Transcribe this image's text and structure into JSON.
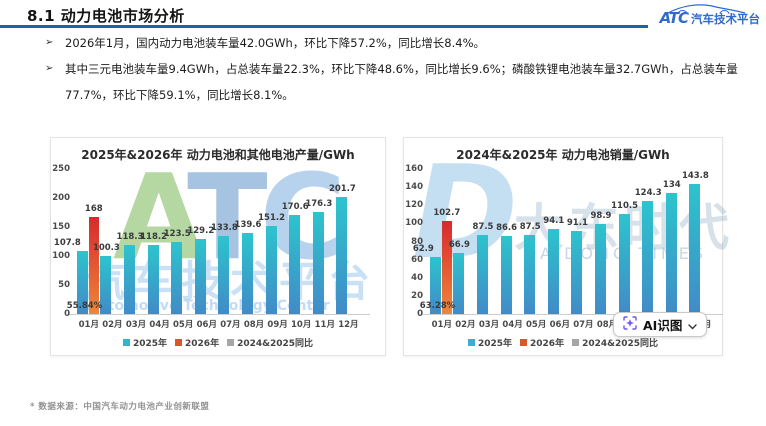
{
  "header": {
    "title": "8.1 动力电池市场分析",
    "rule_color": "#2060a8",
    "logo": {
      "abbr": "ATC",
      "name": "汽车技术平台",
      "color": "#2e6bcc"
    }
  },
  "bullets": [
    {
      "marker": "➢",
      "text": "2026年1月，国内动力电池装车量42.0GWh，环比下降57.2%，同比增长8.4%。"
    },
    {
      "marker": "➢",
      "text": "其中三元电池装车量9.4GWh，占总装车量22.3%，环比下降48.6%，同比增长9.6%；磷酸铁锂电池装车量32.7GWh，占总装车量77.7%，环比下降59.1%，同比增长8.1%。"
    }
  ],
  "chart_data": [
    {
      "type": "bar",
      "title": "2025年&2026年 动力电池和其他电池产量/GWh",
      "categories": [
        "01月",
        "02月",
        "03月",
        "04月",
        "05月",
        "06月",
        "07月",
        "08月",
        "09月",
        "10月",
        "11月",
        "12月"
      ],
      "ylim": [
        0,
        250
      ],
      "yticks": [
        0,
        50,
        100,
        150,
        200,
        250
      ],
      "grid": false,
      "legend_position": "bottom",
      "series": [
        {
          "name": "2025年",
          "colors": {
            "legend": "#31b4cf",
            "top": "#2cc4cd",
            "bottom": "#418bc7"
          },
          "values": [
            107.8,
            100.3,
            118.3,
            118.2,
            123.5,
            129.2,
            133.8,
            139.6,
            151.2,
            170.6,
            176.3,
            201.7
          ]
        },
        {
          "name": "2026年",
          "colors": {
            "legend": "#e4512d",
            "top": "#d62a2e",
            "bottom": "#ef8638"
          },
          "values": [
            168,
            null,
            null,
            null,
            null,
            null,
            null,
            null,
            null,
            null,
            null,
            null
          ]
        },
        {
          "name": "2024&2025同比",
          "colors": {
            "legend": "#a6a6a6",
            "top": "#a6a6a6",
            "bottom": "#a6a6a6"
          },
          "values": [
            0.5584,
            null,
            null,
            null,
            null,
            null,
            null,
            null,
            null,
            null,
            null,
            null
          ],
          "data_label": "55.84%"
        }
      ]
    },
    {
      "type": "bar",
      "title": "2024年&2025年 动力电池销量/GWh",
      "categories": [
        "01月",
        "02月",
        "03月",
        "04月",
        "05月",
        "06月",
        "07月",
        "08月",
        "09月",
        "10月",
        "11月",
        "12月"
      ],
      "ylim": [
        0,
        160
      ],
      "yticks": [
        0,
        20,
        40,
        60,
        80,
        100,
        120,
        140,
        160
      ],
      "grid": false,
      "legend_position": "bottom",
      "series": [
        {
          "name": "2025年",
          "colors": {
            "legend": "#31b4cf",
            "top": "#2cc4cd",
            "bottom": "#418bc7"
          },
          "values": [
            62.9,
            66.9,
            87.5,
            86.6,
            87.5,
            94.1,
            91.1,
            98.9,
            110.5,
            124.3,
            134,
            143.8
          ]
        },
        {
          "name": "2026年",
          "colors": {
            "legend": "#e4512d",
            "top": "#d62a2e",
            "bottom": "#ef8638"
          },
          "values": [
            102.7,
            null,
            null,
            null,
            null,
            null,
            null,
            null,
            null,
            null,
            null,
            null
          ]
        },
        {
          "name": "2024&2025同比",
          "colors": {
            "legend": "#a6a6a6",
            "top": "#a6a6a6",
            "bottom": "#a6a6a6"
          },
          "values": [
            0.6328,
            null,
            null,
            null,
            null,
            null,
            null,
            null,
            null,
            null,
            null,
            null
          ],
          "data_label": "63.28%"
        }
      ]
    }
  ],
  "watermarks": {
    "atc": {
      "letters": [
        "A",
        "T",
        "C"
      ],
      "letter_colors": [
        "#b5d8a2",
        "#a6c4e1",
        "#b6d2ec"
      ],
      "cn": "汽车技术平台",
      "en": "Automotive Technology Center"
    },
    "dadong": {
      "letter": "D",
      "cn": "大东时代",
      "en": "DA DONG TIMES"
    }
  },
  "ai_button": {
    "label": "AI识图",
    "icon_color": "#7b5cf0"
  },
  "footer": {
    "source": "* 数据来源：中国汽车动力电池产业创新联盟"
  }
}
